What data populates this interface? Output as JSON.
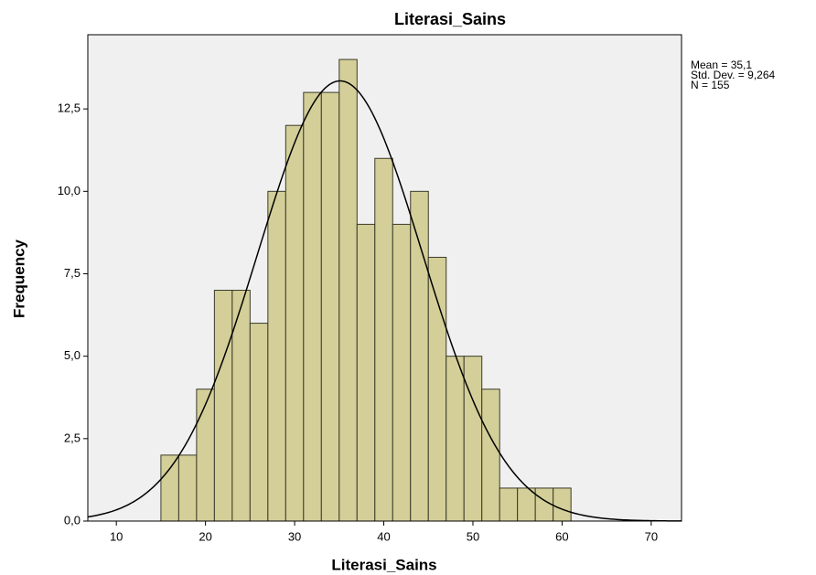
{
  "chart_data": {
    "type": "histogram",
    "title": "Literasi_Sains",
    "x_label": "Literasi_Sains",
    "y_label": "Frequency",
    "bins": [
      15,
      17,
      19,
      21,
      23,
      25,
      27,
      29,
      31,
      33,
      35,
      37,
      39,
      41,
      43,
      45,
      47,
      49,
      51,
      53,
      55,
      57,
      59,
      61
    ],
    "values": [
      2,
      2,
      4,
      7,
      7,
      6,
      10,
      12,
      13,
      13,
      14,
      9,
      11,
      9,
      10,
      8,
      5,
      5,
      4,
      1,
      1,
      1,
      1
    ],
    "color": "#d4cf98",
    "edge_color": "#3a3a2a",
    "curve_color": "#000000",
    "background": "#f0f0f0",
    "xlim": [
      6.8,
      73.4
    ],
    "xticks": [
      10,
      20,
      30,
      40,
      50,
      60,
      70
    ],
    "ylim": [
      0,
      14.75
    ],
    "yticks": [
      {
        "value": 0,
        "label": "0,0"
      },
      {
        "value": 2.5,
        "label": "2,5"
      },
      {
        "value": 5,
        "label": "5,0"
      },
      {
        "value": 7.5,
        "label": "7,5"
      },
      {
        "value": 10,
        "label": "10,0"
      },
      {
        "value": 12.5,
        "label": "12,5"
      }
    ],
    "stats": {
      "mean": 35.1,
      "std_dev": 9.264,
      "n": 155,
      "labels": [
        "Mean = 35,1",
        "Std. Dev. = 9,264",
        "N = 155"
      ]
    }
  }
}
